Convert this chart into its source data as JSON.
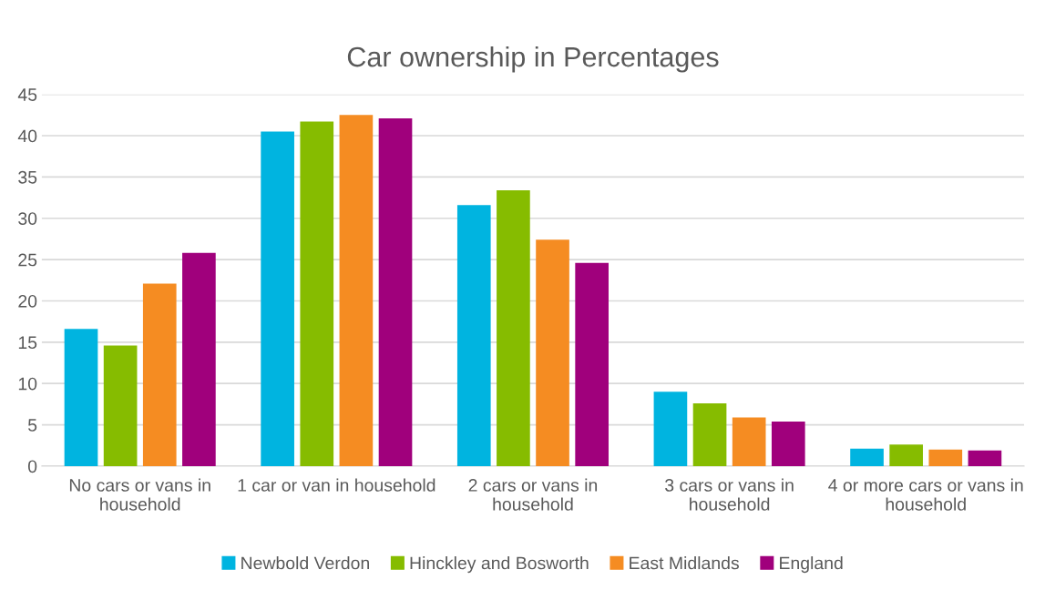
{
  "chart_data": {
    "type": "bar",
    "title": "Car ownership in Percentages",
    "categories": [
      "No cars or vans in household",
      "1 car or van in household",
      "2 cars or vans in household",
      "3 cars or vans in household",
      "4 or more cars or vans in household"
    ],
    "series": [
      {
        "name": "Newbold Verdon",
        "color": "#00b4e0",
        "values": [
          16.6,
          40.5,
          31.6,
          9.0,
          2.1
        ]
      },
      {
        "name": "Hinckley and Bosworth",
        "color": "#86bc00",
        "values": [
          14.6,
          41.7,
          33.4,
          7.6,
          2.6
        ]
      },
      {
        "name": "East Midlands",
        "color": "#f58c22",
        "values": [
          22.1,
          42.5,
          27.4,
          5.9,
          2.0
        ]
      },
      {
        "name": "England",
        "color": "#a0007c",
        "values": [
          25.8,
          42.1,
          24.6,
          5.4,
          1.9
        ]
      }
    ],
    "ylim": [
      0,
      45
    ],
    "yticks": [
      0,
      5,
      10,
      15,
      20,
      25,
      30,
      35,
      40,
      45
    ],
    "grid": "y",
    "legend": "bottom"
  }
}
